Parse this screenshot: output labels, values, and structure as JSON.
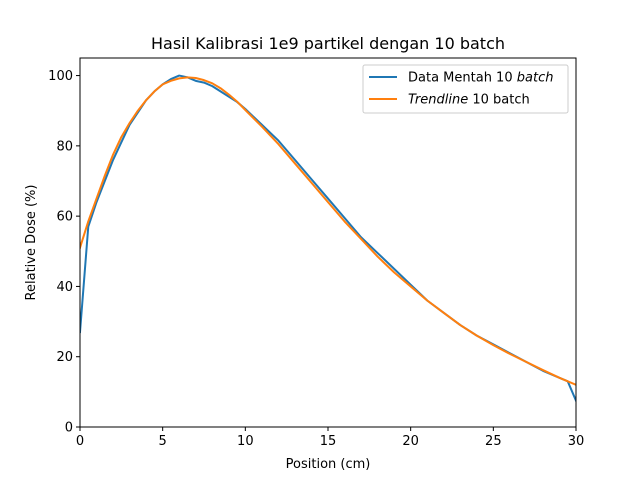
{
  "chart_data": {
    "type": "line",
    "title": "Hasil Kalibrasi 1e9 partikel dengan 10 batch",
    "xlabel": "Position (cm)",
    "ylabel": "Relative Dose (%)",
    "xlim": [
      0,
      30
    ],
    "ylim": [
      0,
      105
    ],
    "x_ticks": [
      0,
      5,
      10,
      15,
      20,
      25,
      30
    ],
    "y_ticks": [
      0,
      20,
      40,
      60,
      80,
      100
    ],
    "grid": false,
    "legend_position": "top-right",
    "series": [
      {
        "name_normal": "Data Mentah 10 ",
        "name_italic": "batch",
        "italic_first": false,
        "color": "#1f77b4",
        "x": [
          0,
          0.5,
          1,
          1.5,
          2,
          2.5,
          3,
          3.5,
          4,
          4.5,
          5,
          5.5,
          6,
          6.5,
          7,
          7.5,
          8,
          8.5,
          9,
          9.5,
          10,
          11,
          12,
          13,
          14,
          15,
          16,
          17,
          18,
          19,
          20,
          21,
          22,
          23,
          24,
          25,
          26,
          27,
          28,
          29,
          29.5,
          30
        ],
        "y": [
          27,
          57,
          64,
          70,
          76,
          81,
          86,
          89.5,
          93,
          95.5,
          97.5,
          99,
          100,
          99.5,
          98.5,
          98,
          97,
          95.5,
          94,
          92.5,
          90.5,
          86,
          81.5,
          76,
          70.5,
          65,
          59.5,
          54,
          49.5,
          45,
          40.5,
          36,
          32.5,
          29,
          26,
          23.5,
          21,
          18.5,
          16,
          14,
          13,
          7.5
        ]
      },
      {
        "name_normal": " 10 batch",
        "name_italic": "Trendline",
        "italic_first": true,
        "color": "#ff7f0e",
        "x": [
          0,
          0.5,
          1,
          1.5,
          2,
          2.5,
          3,
          3.5,
          4,
          4.5,
          5,
          5.5,
          6,
          6.5,
          7,
          7.5,
          8,
          8.5,
          9,
          9.5,
          10,
          11,
          12,
          13,
          14,
          15,
          16,
          17,
          18,
          19,
          20,
          21,
          22,
          23,
          24,
          25,
          26,
          27,
          28,
          29,
          29.5,
          30
        ],
        "y": [
          51,
          58.5,
          65,
          71.5,
          77.5,
          82.5,
          86.5,
          90,
          93,
          95.5,
          97.5,
          98.5,
          99.2,
          99.5,
          99.3,
          98.7,
          97.8,
          96.4,
          94.6,
          92.6,
          90.2,
          85.5,
          80.5,
          75,
          69.5,
          64,
          58.5,
          53.5,
          48.5,
          44,
          40,
          36,
          32.5,
          29,
          26,
          23.3,
          20.8,
          18.5,
          16.2,
          14,
          13,
          12
        ]
      }
    ]
  }
}
